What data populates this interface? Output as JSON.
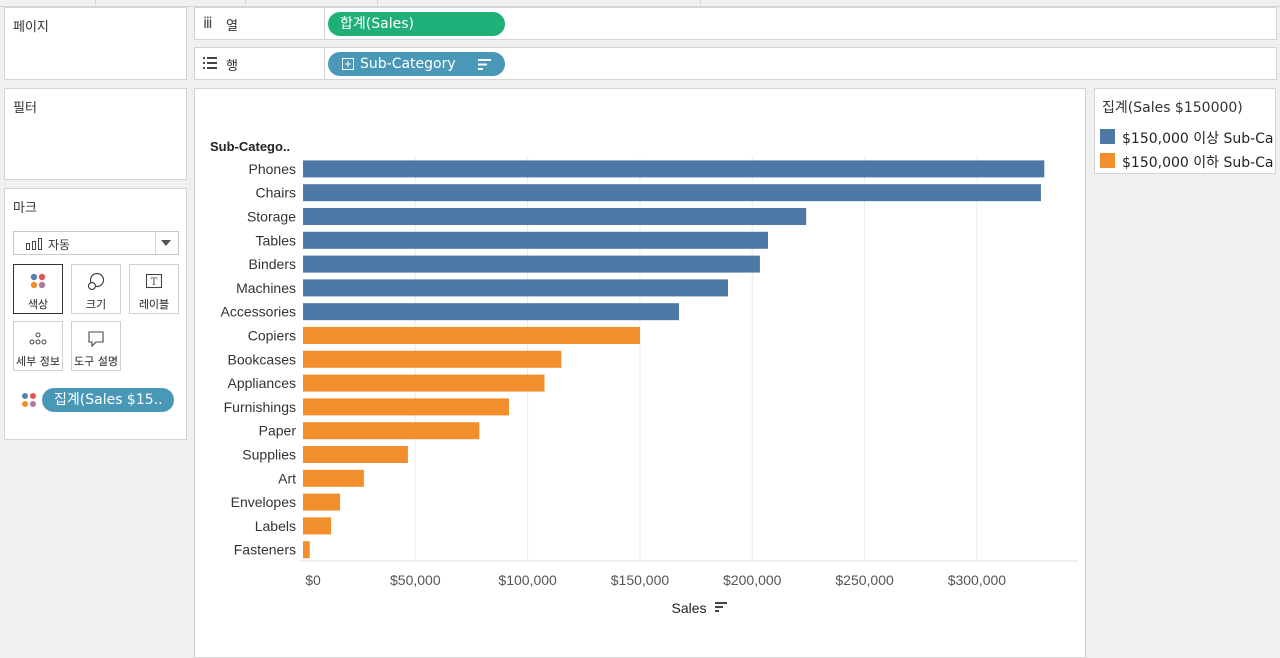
{
  "shelves": {
    "pages_title": "페이지",
    "columns_label": "열",
    "rows_label": "행",
    "columns_pill": "합계(Sales)",
    "rows_pill": "Sub-Category",
    "filters_title": "필터"
  },
  "marks": {
    "title": "마크",
    "mark_type": "자동",
    "buttons": {
      "color": "색상",
      "size": "크기",
      "label": "레이블",
      "detail": "세부 정보",
      "tooltip": "도구 설명"
    },
    "color_pill": "집계(Sales $15.."
  },
  "legend": {
    "title": "집계(Sales $150000)",
    "items": [
      {
        "label": "$150,000 이상 Sub-Ca..",
        "color": "#4e79a7"
      },
      {
        "label": "$150,000 이하 Sub-Ca..",
        "color": "#f28e2b"
      }
    ]
  },
  "chart_data": {
    "type": "bar",
    "orientation": "horizontal",
    "row_header": "Sub-Catego..",
    "xlabel": "Sales",
    "xlim": [
      0,
      345000
    ],
    "xticks": [
      0,
      50000,
      100000,
      150000,
      200000,
      250000,
      300000
    ],
    "xtick_labels": [
      "$0",
      "$50,000",
      "$100,000",
      "$150,000",
      "$200,000",
      "$250,000",
      "$300,000"
    ],
    "categories": [
      "Phones",
      "Chairs",
      "Storage",
      "Tables",
      "Binders",
      "Machines",
      "Accessories",
      "Copiers",
      "Bookcases",
      "Appliances",
      "Furnishings",
      "Paper",
      "Supplies",
      "Art",
      "Envelopes",
      "Labels",
      "Fasteners"
    ],
    "values": [
      330000,
      328500,
      224000,
      207000,
      203400,
      189200,
      167400,
      150000,
      115000,
      107500,
      91700,
      78500,
      46700,
      27100,
      16500,
      12500,
      3000
    ],
    "colors": [
      "#4e79a7",
      "#4e79a7",
      "#4e79a7",
      "#4e79a7",
      "#4e79a7",
      "#4e79a7",
      "#4e79a7",
      "#f28e2b",
      "#f28e2b",
      "#f28e2b",
      "#f28e2b",
      "#f28e2b",
      "#f28e2b",
      "#f28e2b",
      "#f28e2b",
      "#f28e2b",
      "#f28e2b"
    ]
  }
}
